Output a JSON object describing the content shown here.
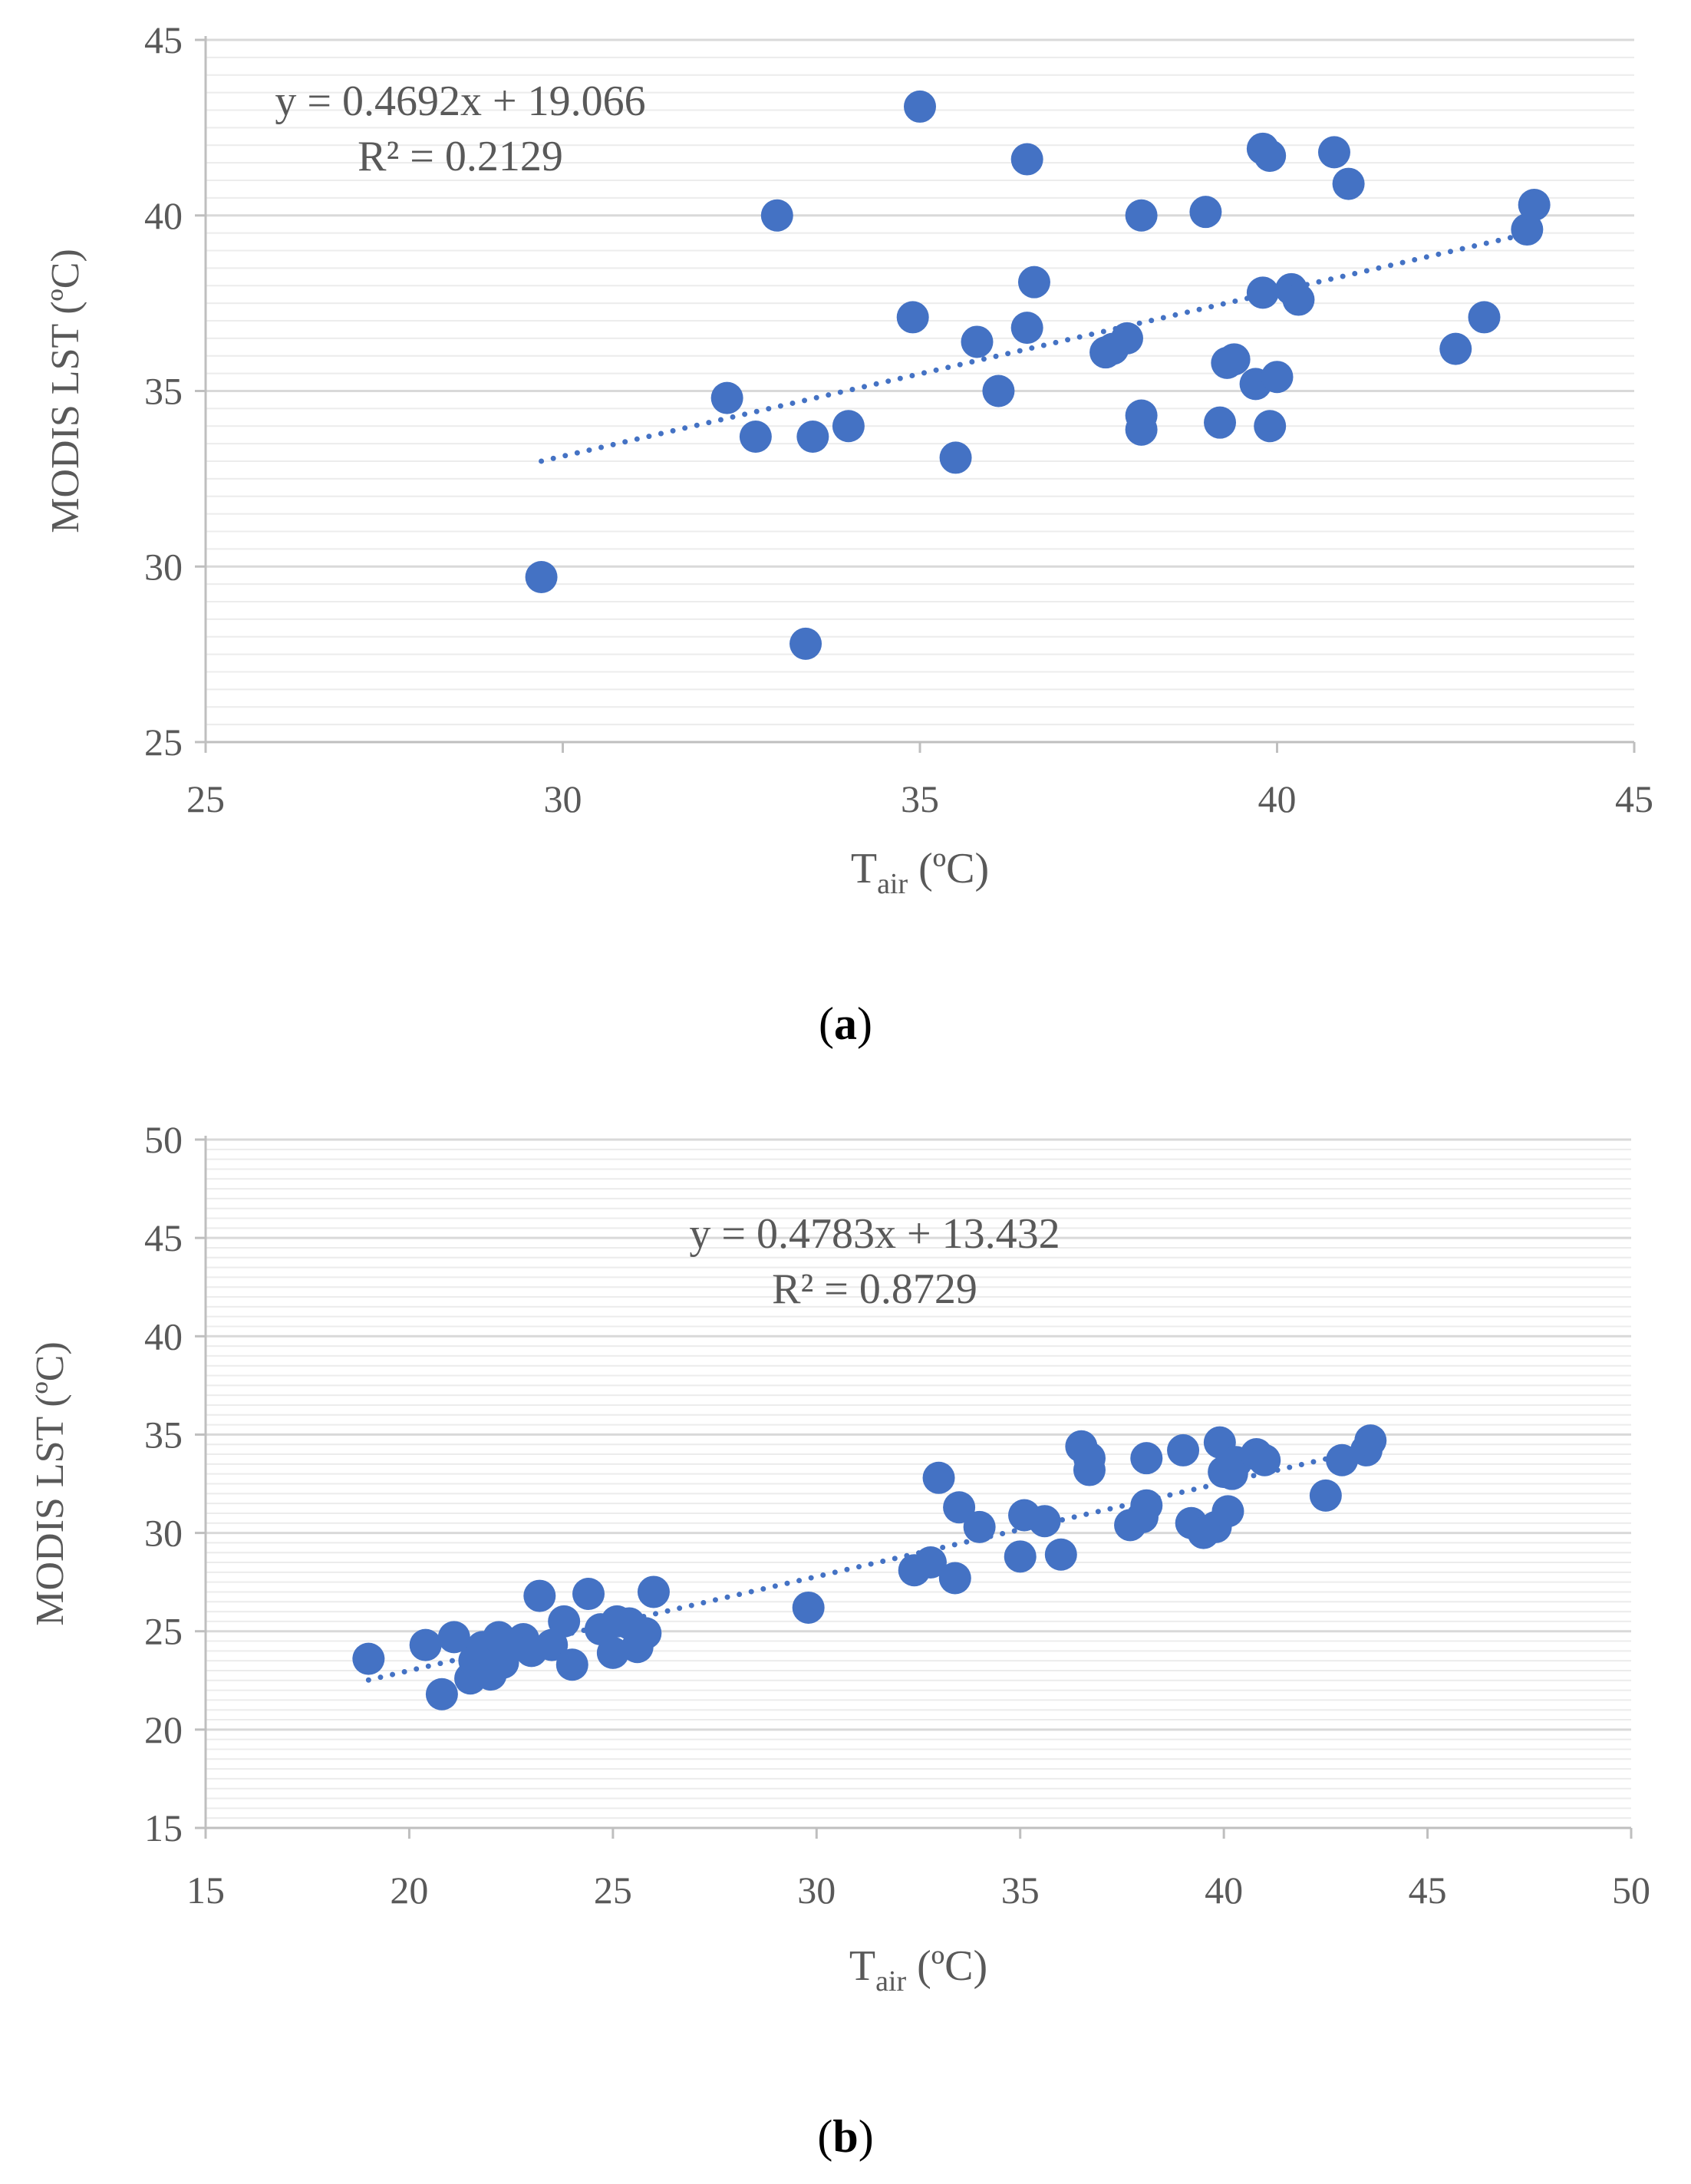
{
  "captions": [
    "(a)",
    "(b)"
  ],
  "caption_letters": [
    "a",
    "b"
  ],
  "chart_data": [
    {
      "type": "scatter",
      "ylabel": "MODIS LST (ºC)",
      "xlabel_main": "T",
      "xlabel_sub": "air",
      "xlabel_unit": " (ºC)",
      "xlim": [
        25,
        45
      ],
      "ylim": [
        25,
        45
      ],
      "xticks": [
        25,
        30,
        35,
        40,
        45
      ],
      "yticks": [
        25,
        30,
        35,
        40,
        45
      ],
      "minor_gridlines": true,
      "trendline": {
        "slope": 0.4692,
        "intercept": 19.066,
        "x_range": [
          29.7,
          43.6
        ],
        "style": "dotted"
      },
      "equation": "y = 0.4692x + 19.066",
      "r2": "R² = 0.2129",
      "marker_color": "#4472C4",
      "points": [
        [
          29.7,
          29.7
        ],
        [
          32.3,
          34.8
        ],
        [
          32.7,
          33.7
        ],
        [
          33.0,
          40.0
        ],
        [
          33.4,
          27.8
        ],
        [
          33.5,
          33.7
        ],
        [
          34.0,
          34.0
        ],
        [
          34.9,
          37.1
        ],
        [
          35.0,
          43.1
        ],
        [
          35.5,
          33.1
        ],
        [
          35.8,
          36.4
        ],
        [
          36.1,
          35.0
        ],
        [
          36.5,
          41.6
        ],
        [
          36.5,
          36.8
        ],
        [
          36.6,
          38.1
        ],
        [
          37.6,
          36.1
        ],
        [
          37.7,
          36.2
        ],
        [
          37.9,
          36.5
        ],
        [
          38.1,
          40.0
        ],
        [
          38.1,
          34.3
        ],
        [
          38.1,
          33.9
        ],
        [
          39.0,
          40.1
        ],
        [
          39.2,
          34.1
        ],
        [
          39.3,
          35.8
        ],
        [
          39.4,
          35.9
        ],
        [
          39.7,
          35.2
        ],
        [
          39.8,
          41.9
        ],
        [
          39.8,
          37.8
        ],
        [
          39.9,
          41.7
        ],
        [
          39.9,
          34.0
        ],
        [
          40.0,
          35.4
        ],
        [
          40.2,
          37.9
        ],
        [
          40.3,
          37.6
        ],
        [
          40.8,
          41.8
        ],
        [
          41.0,
          40.9
        ],
        [
          42.5,
          36.2
        ],
        [
          42.9,
          37.1
        ],
        [
          43.5,
          39.6
        ],
        [
          43.6,
          40.3
        ]
      ]
    },
    {
      "type": "scatter",
      "ylabel": "MODIS LST (ºC)",
      "xlabel_main": "T",
      "xlabel_sub": "air",
      "xlabel_unit": " (ºC)",
      "xlim": [
        15,
        50
      ],
      "ylim": [
        15,
        50
      ],
      "xticks": [
        15,
        20,
        25,
        30,
        35,
        40,
        45,
        50
      ],
      "yticks": [
        15,
        20,
        25,
        30,
        35,
        40,
        45,
        50
      ],
      "minor_gridlines": true,
      "trendline": {
        "slope": 0.4783,
        "intercept": 13.432,
        "x_range": [
          19.0,
          43.6
        ],
        "style": "dotted"
      },
      "equation": "y = 0.4783x + 13.432",
      "r2": "R² = 0.8729",
      "marker_color": "#4472C4",
      "points": [
        [
          19.0,
          23.6
        ],
        [
          20.4,
          24.3
        ],
        [
          20.8,
          21.8
        ],
        [
          21.1,
          24.7
        ],
        [
          21.5,
          22.6
        ],
        [
          21.6,
          23.5
        ],
        [
          21.8,
          24.2
        ],
        [
          22.0,
          22.8
        ],
        [
          22.2,
          24.7
        ],
        [
          22.3,
          23.4
        ],
        [
          22.5,
          24.2
        ],
        [
          22.8,
          24.6
        ],
        [
          23.0,
          24.0
        ],
        [
          23.2,
          26.8
        ],
        [
          23.5,
          24.3
        ],
        [
          23.8,
          25.5
        ],
        [
          24.0,
          23.3
        ],
        [
          24.4,
          26.9
        ],
        [
          24.7,
          25.1
        ],
        [
          25.0,
          23.9
        ],
        [
          25.1,
          25.5
        ],
        [
          25.4,
          25.4
        ],
        [
          25.6,
          24.2
        ],
        [
          25.8,
          24.9
        ],
        [
          26.0,
          27.0
        ],
        [
          29.8,
          26.2
        ],
        [
          32.4,
          28.1
        ],
        [
          32.8,
          28.5
        ],
        [
          33.0,
          32.8
        ],
        [
          33.4,
          27.7
        ],
        [
          33.5,
          31.3
        ],
        [
          34.0,
          30.3
        ],
        [
          35.0,
          28.8
        ],
        [
          35.1,
          30.9
        ],
        [
          35.6,
          30.6
        ],
        [
          36.0,
          28.9
        ],
        [
          36.5,
          34.4
        ],
        [
          36.7,
          33.2
        ],
        [
          36.7,
          33.8
        ],
        [
          37.7,
          30.4
        ],
        [
          38.0,
          30.8
        ],
        [
          38.1,
          33.8
        ],
        [
          38.1,
          31.4
        ],
        [
          39.0,
          34.2
        ],
        [
          39.2,
          30.5
        ],
        [
          39.5,
          30.0
        ],
        [
          39.8,
          30.3
        ],
        [
          39.9,
          34.6
        ],
        [
          40.0,
          33.1
        ],
        [
          40.1,
          31.1
        ],
        [
          40.2,
          33.0
        ],
        [
          40.3,
          33.6
        ],
        [
          40.8,
          34.0
        ],
        [
          41.0,
          33.7
        ],
        [
          42.5,
          31.9
        ],
        [
          42.9,
          33.7
        ],
        [
          43.5,
          34.2
        ],
        [
          43.6,
          34.7
        ]
      ]
    }
  ]
}
